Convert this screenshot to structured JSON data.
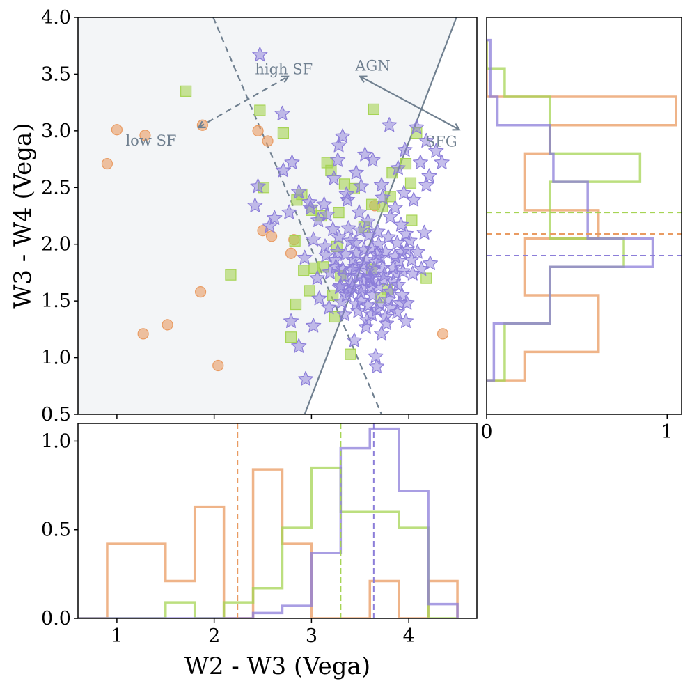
{
  "chart_data": [
    {
      "type": "scatter",
      "panel": "main",
      "xlabel": "W2 - W3 (Vega)",
      "ylabel": "W3 - W4 (Vega)",
      "xlim": [
        0.6,
        4.7
      ],
      "ylim": [
        0.5,
        4.0
      ],
      "x_ticks": [],
      "y_ticks": [
        "0.5",
        "1.0",
        "1.5",
        "2.0",
        "2.5",
        "3.0",
        "3.5",
        "4.0"
      ],
      "colors": {
        "orange": "#e99b62",
        "green": "#a6d454",
        "purple": "#8c7ed9",
        "line": "#708090",
        "shade": "#f3f5f7"
      },
      "agn_line": {
        "x": [
          2.93,
          4.49
        ],
        "y": [
          0.5,
          4.0
        ]
      },
      "sf_line": {
        "x": [
          1.99,
          3.72
        ],
        "y": [
          4.0,
          0.5
        ]
      },
      "annotations": [
        {
          "text": "high SF",
          "x": 2.42,
          "y": 3.5
        },
        {
          "text": "low SF",
          "x": 1.09,
          "y": 2.87
        },
        {
          "text": "AGN",
          "x": 3.45,
          "y": 3.53
        },
        {
          "text": "SFG",
          "x": 4.17,
          "y": 2.86
        }
      ],
      "arrows": [
        {
          "style": "dashed",
          "x1": 1.84,
          "y1": 3.03,
          "x2": 2.76,
          "y2": 3.48
        },
        {
          "style": "solid",
          "x1": 3.5,
          "y1": 3.48,
          "x2": 4.52,
          "y2": 3.01
        }
      ],
      "series": [
        {
          "name": "orange circles",
          "marker": "circle",
          "points": [
            [
              0.9,
              2.71
            ],
            [
              1.0,
              3.01
            ],
            [
              1.29,
              2.96
            ],
            [
              1.88,
              3.05
            ],
            [
              2.45,
              3.0
            ],
            [
              2.55,
              2.91
            ],
            [
              2.5,
              2.12
            ],
            [
              2.59,
              2.07
            ],
            [
              2.79,
              1.92
            ],
            [
              2.82,
              2.04
            ],
            [
              1.86,
              1.58
            ],
            [
              1.27,
              1.21
            ],
            [
              1.52,
              1.29
            ],
            [
              2.04,
              0.93
            ],
            [
              3.65,
              2.34
            ],
            [
              4.35,
              1.21
            ]
          ]
        },
        {
          "name": "green squares",
          "marker": "square",
          "points": [
            [
              1.71,
              3.35
            ],
            [
              2.47,
              3.18
            ],
            [
              2.71,
              2.98
            ],
            [
              2.17,
              1.73
            ],
            [
              2.51,
              2.5
            ],
            [
              2.85,
              2.39
            ],
            [
              2.9,
              2.44
            ],
            [
              3.0,
              2.3
            ],
            [
              3.1,
              2.25
            ],
            [
              3.16,
              2.72
            ],
            [
              3.2,
              2.65
            ],
            [
              3.28,
              2.28
            ],
            [
              3.34,
              2.53
            ],
            [
              3.44,
              2.49
            ],
            [
              3.54,
              2.15
            ],
            [
              3.62,
              2.35
            ],
            [
              3.73,
              2.33
            ],
            [
              3.81,
              2.42
            ],
            [
              3.83,
              2.63
            ],
            [
              3.97,
              2.71
            ],
            [
              4.02,
              2.54
            ],
            [
              4.03,
              2.21
            ],
            [
              4.08,
              2.98
            ],
            [
              4.18,
              1.7
            ],
            [
              3.64,
              3.19
            ],
            [
              2.83,
              2.03
            ],
            [
              2.92,
              1.77
            ],
            [
              2.98,
              1.59
            ],
            [
              2.84,
              1.47
            ],
            [
              3.03,
              1.79
            ],
            [
              3.12,
              1.8
            ],
            [
              3.22,
              1.55
            ],
            [
              3.26,
              1.98
            ],
            [
              3.3,
              1.72
            ],
            [
              3.24,
              1.36
            ],
            [
              3.4,
              1.03
            ],
            [
              3.62,
              1.78
            ],
            [
              3.71,
              1.53
            ],
            [
              2.79,
              1.18
            ],
            [
              3.78,
              1.6
            ]
          ]
        },
        {
          "name": "purple stars",
          "marker": "star",
          "points": [
            [
              2.47,
              3.67
            ],
            [
              2.7,
              3.15
            ],
            [
              3.8,
              3.05
            ],
            [
              4.08,
              3.03
            ],
            [
              4.18,
              2.91
            ],
            [
              3.32,
              2.95
            ],
            [
              3.28,
              2.87
            ],
            [
              2.71,
              2.65
            ],
            [
              2.8,
              2.72
            ],
            [
              2.45,
              2.51
            ],
            [
              2.42,
              2.34
            ],
            [
              2.87,
              2.46
            ],
            [
              2.98,
              2.37
            ],
            [
              3.13,
              2.35
            ],
            [
              3.23,
              2.58
            ],
            [
              3.27,
              2.74
            ],
            [
              3.37,
              2.39
            ],
            [
              3.46,
              2.63
            ],
            [
              3.55,
              2.79
            ],
            [
              3.63,
              2.74
            ],
            [
              3.72,
              2.52
            ],
            [
              3.89,
              2.67
            ],
            [
              3.96,
              2.83
            ],
            [
              4.12,
              2.72
            ],
            [
              4.21,
              2.6
            ],
            [
              4.28,
              2.82
            ],
            [
              4.34,
              2.72
            ],
            [
              4.18,
              2.52
            ],
            [
              2.99,
              2.32
            ],
            [
              3.07,
              2.21
            ],
            [
              3.16,
              2.26
            ],
            [
              3.28,
              2.06
            ],
            [
              3.38,
              2.14
            ],
            [
              3.49,
              2.28
            ],
            [
              3.58,
              2.2
            ],
            [
              3.68,
              2.11
            ],
            [
              3.81,
              2.24
            ],
            [
              3.92,
              2.17
            ],
            [
              4.01,
              2.03
            ],
            [
              4.09,
              1.93
            ],
            [
              4.16,
              2.1
            ],
            [
              3.02,
              2.04
            ],
            [
              3.14,
              1.98
            ],
            [
              3.24,
              1.86
            ],
            [
              3.35,
              1.91
            ],
            [
              3.45,
              2.01
            ],
            [
              3.53,
              1.82
            ],
            [
              3.62,
              1.96
            ],
            [
              3.71,
              1.88
            ],
            [
              3.84,
              1.79
            ],
            [
              3.93,
              1.93
            ],
            [
              4.04,
              1.74
            ],
            [
              2.93,
              1.88
            ],
            [
              3.06,
              1.7
            ],
            [
              3.19,
              1.75
            ],
            [
              3.29,
              1.62
            ],
            [
              3.41,
              1.66
            ],
            [
              3.51,
              1.57
            ],
            [
              3.6,
              1.7
            ],
            [
              3.69,
              1.63
            ],
            [
              3.79,
              1.51
            ],
            [
              3.89,
              1.64
            ],
            [
              3.98,
              1.48
            ],
            [
              4.13,
              1.78
            ],
            [
              4.22,
              1.83
            ],
            [
              3.08,
              1.52
            ],
            [
              3.18,
              1.44
            ],
            [
              3.34,
              1.38
            ],
            [
              3.46,
              1.47
            ],
            [
              3.57,
              1.33
            ],
            [
              3.67,
              1.42
            ],
            [
              3.76,
              1.36
            ],
            [
              3.88,
              1.4
            ],
            [
              3.97,
              1.32
            ],
            [
              3.44,
              1.15
            ],
            [
              3.56,
              1.27
            ],
            [
              3.66,
              1.01
            ],
            [
              3.67,
              0.92
            ],
            [
              2.79,
              1.32
            ],
            [
              2.87,
              1.1
            ],
            [
              3.02,
              1.28
            ],
            [
              2.57,
              2.16
            ],
            [
              2.62,
              2.23
            ],
            [
              2.77,
              2.28
            ],
            [
              3.36,
              2.44
            ],
            [
              3.51,
              2.51
            ],
            [
              3.73,
              2.41
            ],
            [
              3.86,
              2.32
            ],
            [
              3.95,
              2.45
            ],
            [
              4.05,
              2.39
            ],
            [
              3.42,
              1.77
            ],
            [
              3.56,
              1.86
            ],
            [
              3.75,
              1.73
            ],
            [
              3.63,
              1.55
            ],
            [
              3.53,
              1.68
            ],
            [
              3.86,
              1.89
            ],
            [
              3.32,
              1.78
            ],
            [
              3.22,
              2.13
            ],
            [
              3.48,
              1.41
            ],
            [
              3.72,
              1.21
            ],
            [
              2.94,
              0.81
            ],
            [
              3.3,
              1.63
            ],
            [
              3.43,
              1.86
            ],
            [
              3.54,
              1.95
            ],
            [
              3.64,
              1.78
            ],
            [
              3.74,
              1.69
            ],
            [
              3.84,
              1.67
            ],
            [
              3.94,
              1.76
            ],
            [
              3.61,
              1.62
            ],
            [
              3.48,
              1.72
            ],
            [
              3.39,
              1.58
            ],
            [
              3.58,
              1.46
            ],
            [
              3.7,
              1.47
            ],
            [
              3.81,
              1.58
            ],
            [
              3.69,
              2.0
            ],
            [
              3.79,
              2.06
            ],
            [
              3.59,
              2.08
            ],
            [
              3.5,
              2.12
            ],
            [
              3.4,
              2.03
            ],
            [
              3.27,
              1.93
            ],
            [
              3.46,
              1.92
            ],
            [
              3.67,
              1.91
            ],
            [
              3.88,
              2.01
            ],
            [
              3.97,
              2.09
            ],
            [
              4.03,
              1.86
            ],
            [
              3.93,
              1.55
            ],
            [
              3.82,
              1.44
            ],
            [
              3.52,
              1.61
            ],
            [
              3.63,
              1.67
            ],
            [
              3.36,
              1.55
            ],
            [
              3.15,
              1.9
            ],
            [
              3.57,
              1.76
            ],
            [
              3.66,
              1.84
            ],
            [
              3.76,
              1.93
            ],
            [
              3.45,
              1.8
            ],
            [
              3.34,
              1.72
            ],
            [
              3.25,
              1.8
            ],
            [
              3.9,
              1.85
            ],
            [
              3.98,
              1.95
            ],
            [
              3.87,
              1.74
            ],
            [
              3.73,
              1.79
            ],
            [
              3.6,
              1.71
            ],
            [
              3.51,
              1.5
            ],
            [
              3.42,
              1.62
            ],
            [
              3.31,
              1.49
            ],
            [
              3.62,
              1.38
            ],
            [
              3.77,
              1.3
            ],
            [
              3.91,
              1.48
            ]
          ]
        }
      ]
    },
    {
      "type": "histogram-step",
      "panel": "bottom",
      "xlabel": "W2 - W3 (Vega)",
      "xlim": [
        0.6,
        4.7
      ],
      "ylim": [
        0.0,
        1.1
      ],
      "x_ticks": [
        "1",
        "2",
        "3",
        "4"
      ],
      "y_ticks": [
        "0.0",
        "0.5",
        "1.0"
      ],
      "bin_edges": [
        0.6,
        0.9,
        1.2,
        1.5,
        1.8,
        2.1,
        2.4,
        2.7,
        3.0,
        3.3,
        3.6,
        3.9,
        4.2,
        4.5
      ],
      "series": [
        {
          "name": "orange",
          "values": [
            0,
            0.42,
            0.42,
            0.21,
            0.63,
            0,
            0.84,
            0.42,
            0,
            0,
            0.21,
            0,
            0.21
          ],
          "median": 2.24
        },
        {
          "name": "green",
          "values": [
            0,
            0,
            0,
            0.09,
            0,
            0.09,
            0.17,
            0.51,
            0.85,
            0.6,
            0.6,
            0.51,
            0
          ],
          "median": 3.3
        },
        {
          "name": "purple",
          "values": [
            0,
            0,
            0,
            0,
            0,
            0,
            0.03,
            0.07,
            0.37,
            0.96,
            1.07,
            0.72,
            0.08
          ],
          "median": 3.64
        }
      ]
    },
    {
      "type": "histogram-step",
      "panel": "right",
      "orientation": "horizontal",
      "xlim": [
        0,
        1.08
      ],
      "ylim": [
        0.5,
        4.0
      ],
      "x_ticks": [
        "0",
        "1"
      ],
      "bin_edges": [
        0.8,
        1.05,
        1.3,
        1.55,
        1.8,
        2.05,
        2.3,
        2.55,
        2.8,
        3.05,
        3.3,
        3.55,
        3.8
      ],
      "series": [
        {
          "name": "orange",
          "values": [
            0.21,
            0.62,
            0.62,
            0.21,
            0.21,
            0.62,
            0.21,
            0.21,
            0.35,
            1.05,
            0,
            0
          ],
          "median": 2.09
        },
        {
          "name": "green",
          "values": [
            0.1,
            0.1,
            0.35,
            0.35,
            0.76,
            0.35,
            0.35,
            0.85,
            0.35,
            0.35,
            0.1,
            0
          ],
          "median": 2.28
        },
        {
          "name": "purple",
          "values": [
            0.04,
            0.04,
            0.35,
            0.35,
            0.92,
            0.56,
            0.56,
            0.37,
            0.35,
            0.06,
            0.02,
            0.02
          ],
          "median": 1.9
        }
      ]
    }
  ]
}
